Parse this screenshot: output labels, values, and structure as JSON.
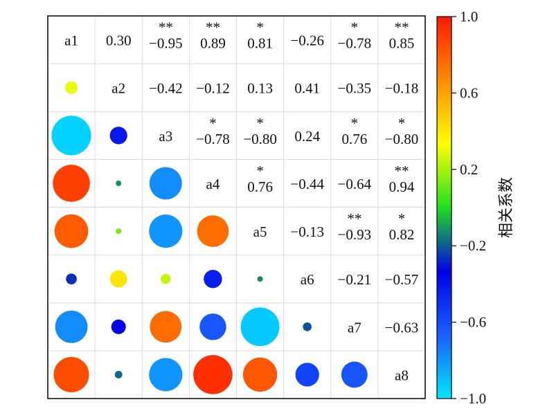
{
  "chart_data": {
    "type": "heatmap",
    "variables": [
      "a1",
      "a2",
      "a3",
      "a4",
      "a5",
      "a6",
      "a7",
      "a8"
    ],
    "upper_text": [
      [
        "",
        "0.30",
        "−0.95",
        "0.89",
        "0.81",
        "−0.26",
        "−0.78",
        "0.85"
      ],
      [
        "",
        "",
        "−0.42",
        "−0.12",
        "0.13",
        "0.41",
        "−0.35",
        "−0.18"
      ],
      [
        "",
        "",
        "",
        "−0.78",
        "−0.80",
        "0.24",
        "0.76",
        "−0.80"
      ],
      [
        "",
        "",
        "",
        "",
        "0.76",
        "−0.44",
        "−0.64",
        "0.94"
      ],
      [
        "",
        "",
        "",
        "",
        "",
        "−0.13",
        "−0.93",
        "0.82"
      ],
      [
        "",
        "",
        "",
        "",
        "",
        "",
        "−0.21",
        "−0.57"
      ],
      [
        "",
        "",
        "",
        "",
        "",
        "",
        "",
        "−0.63"
      ],
      [
        "",
        "",
        "",
        "",
        "",
        "",
        "",
        ""
      ]
    ],
    "significance": [
      [
        "",
        "",
        "**",
        "**",
        "*",
        "",
        "*",
        "**"
      ],
      [
        "",
        "",
        "",
        "",
        "",
        "",
        "",
        ""
      ],
      [
        "",
        "",
        "",
        "*",
        "*",
        "",
        "*",
        "*"
      ],
      [
        "",
        "",
        "",
        "",
        "*",
        "",
        "",
        "**"
      ],
      [
        "",
        "",
        "",
        "",
        "",
        "",
        "**",
        "*"
      ],
      [
        "",
        "",
        "",
        "",
        "",
        "",
        "",
        ""
      ],
      [
        "",
        "",
        "",
        "",
        "",
        "",
        "",
        ""
      ],
      [
        "",
        "",
        "",
        "",
        "",
        "",
        "",
        ""
      ]
    ],
    "matrix": [
      [
        1,
        0.3,
        -0.95,
        0.89,
        0.81,
        -0.26,
        -0.78,
        0.85
      ],
      [
        0.3,
        1,
        -0.42,
        -0.12,
        0.13,
        0.41,
        -0.35,
        -0.18
      ],
      [
        -0.95,
        -0.42,
        1,
        -0.78,
        -0.8,
        0.24,
        0.76,
        -0.8
      ],
      [
        0.89,
        -0.12,
        -0.78,
        1,
        0.76,
        -0.44,
        -0.64,
        0.94
      ],
      [
        0.81,
        0.13,
        -0.8,
        0.76,
        1,
        -0.13,
        -0.93,
        0.82
      ],
      [
        -0.26,
        0.41,
        0.24,
        -0.44,
        -0.13,
        1,
        -0.21,
        -0.57
      ],
      [
        -0.78,
        -0.35,
        0.76,
        -0.64,
        -0.93,
        -0.21,
        1,
        -0.63
      ],
      [
        0.85,
        -0.18,
        -0.8,
        0.94,
        0.82,
        -0.57,
        -0.63,
        1
      ]
    ],
    "lower_marker": "circle",
    "marker_size_encodes": "abs(correlation)",
    "colorbar": {
      "title": "相关系数",
      "range": [
        -1.0,
        1.0
      ],
      "tick_values": [
        1.0,
        0.6,
        0.2,
        -0.2,
        -0.6,
        -1.0
      ],
      "tick_labels": [
        "1.0",
        "0.6",
        "0.2",
        "−0.2",
        "−0.6",
        "−1.0"
      ],
      "colors": [
        "#00e6ff",
        "#1a5fff",
        "#0000e6",
        "#1fe01f",
        "#ffff00",
        "#ff8c00",
        "#ff1a00"
      ],
      "position": "right"
    },
    "grid": true
  }
}
